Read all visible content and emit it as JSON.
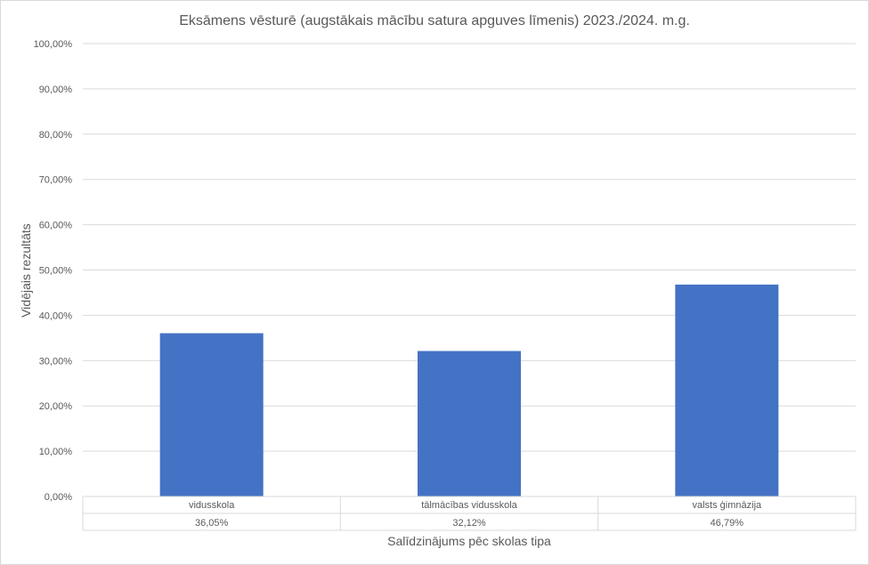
{
  "chart_data": {
    "type": "bar",
    "title": "Eksāmens vēsturē (augstākais mācību satura apguves līmenis) 2023./2024. m.g.",
    "xlabel": "Salīdzinājums pēc skolas tipa",
    "ylabel": "Vidējais rezultāts",
    "categories": [
      "vidusskola",
      "tālmācības vidusskola",
      "valsts ģimnāzija"
    ],
    "values": [
      36.05,
      32.12,
      46.79
    ],
    "value_labels": [
      "36,05%",
      "32,12%",
      "46,79%"
    ],
    "ylim": [
      0,
      100
    ],
    "yticks": [
      0,
      10,
      20,
      30,
      40,
      50,
      60,
      70,
      80,
      90,
      100
    ],
    "ytick_labels": [
      "0,00%",
      "10,00%",
      "20,00%",
      "30,00%",
      "40,00%",
      "50,00%",
      "60,00%",
      "70,00%",
      "80,00%",
      "90,00%",
      "100,00%"
    ],
    "grid": true,
    "data_table": true,
    "bar_color": "#4472c4"
  }
}
